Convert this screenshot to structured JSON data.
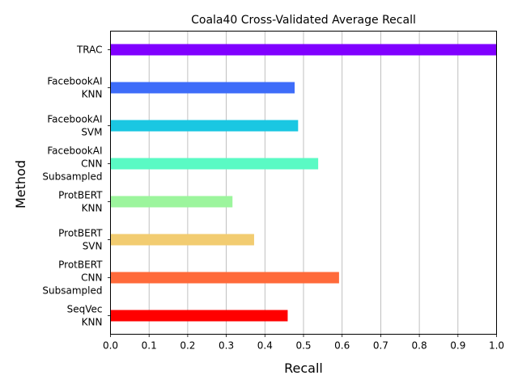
{
  "chart_data": {
    "type": "bar",
    "orientation": "horizontal",
    "title": "Coala40 Cross-Validated Average Recall",
    "xlabel": "Recall",
    "ylabel": "Method",
    "xlim": [
      0,
      1.0
    ],
    "xticks": [
      "0.0",
      "0.1",
      "0.2",
      "0.3",
      "0.4",
      "0.5",
      "0.6",
      "0.7",
      "0.8",
      "0.9",
      "1.0"
    ],
    "grid": "vertical",
    "legend": "none",
    "categories": [
      [
        "TRAC"
      ],
      [
        "FacebookAI",
        "KNN"
      ],
      [
        "FacebookAI",
        "SVM"
      ],
      [
        "FacebookAI",
        "CNN",
        "Subsampled"
      ],
      [
        "ProtBERT",
        "KNN"
      ],
      [
        "ProtBERT",
        "SVN"
      ],
      [
        "ProtBERT",
        "CNN",
        "Subsampled"
      ],
      [
        "SeqVec",
        "KNN"
      ]
    ],
    "values": [
      1.0,
      0.477,
      0.486,
      0.538,
      0.316,
      0.372,
      0.592,
      0.459
    ],
    "colors": [
      "#8000ff",
      "#3e6cf9",
      "#1ac7e2",
      "#5afac4",
      "#9cf59d",
      "#f2cc71",
      "#ff6a3a",
      "#ff0000"
    ]
  }
}
